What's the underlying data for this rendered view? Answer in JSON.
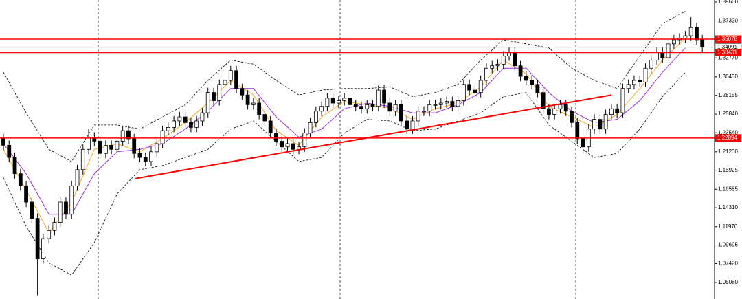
{
  "chart_data": {
    "type": "candlestick",
    "open": [
      1.228,
      1.22,
      1.205,
      1.185,
      1.17,
      1.15,
      1.13,
      1.08,
      1.105,
      1.115,
      1.125,
      1.15,
      1.135,
      1.17,
      1.19,
      1.215,
      1.23,
      1.225,
      1.21,
      1.22,
      1.215,
      1.225,
      1.238,
      1.228,
      1.21,
      1.205,
      1.2,
      1.212,
      1.222,
      1.238,
      1.242,
      1.25,
      1.255,
      1.248,
      1.242,
      1.25,
      1.26,
      1.285,
      1.275,
      1.295,
      1.3,
      1.312,
      1.29,
      1.282,
      1.27,
      1.272,
      1.258,
      1.25,
      1.235,
      1.225,
      1.218,
      1.222,
      1.215,
      1.218,
      1.235,
      1.248,
      1.262,
      1.268,
      1.278,
      1.272,
      1.275,
      1.278,
      1.27,
      1.268,
      1.265,
      1.27,
      1.268,
      1.288,
      1.272,
      1.262,
      1.27,
      1.25,
      1.24,
      1.25,
      1.262,
      1.262,
      1.27,
      1.27,
      1.272,
      1.274,
      1.268,
      1.275,
      1.295,
      1.288,
      1.285,
      1.3,
      1.315,
      1.318,
      1.32,
      1.33,
      1.335,
      1.318,
      1.305,
      1.3,
      1.295,
      1.285,
      1.265,
      1.258,
      1.265,
      1.27,
      1.262,
      1.248,
      1.228,
      1.218,
      1.24,
      1.252,
      1.24,
      1.258,
      1.265,
      1.26,
      1.29,
      1.295,
      1.3,
      1.298,
      1.315,
      1.325,
      1.335,
      1.328,
      1.345,
      1.35,
      1.352,
      1.355,
      1.365,
      1.35
    ],
    "high": [
      1.234,
      1.226,
      1.211,
      1.191,
      1.176,
      1.156,
      1.136,
      1.111,
      1.121,
      1.131,
      1.156,
      1.156,
      1.176,
      1.196,
      1.221,
      1.24,
      1.236,
      1.231,
      1.226,
      1.226,
      1.231,
      1.244,
      1.244,
      1.234,
      1.216,
      1.211,
      1.218,
      1.228,
      1.244,
      1.248,
      1.256,
      1.261,
      1.261,
      1.254,
      1.256,
      1.266,
      1.291,
      1.291,
      1.301,
      1.306,
      1.318,
      1.318,
      1.296,
      1.288,
      1.278,
      1.278,
      1.264,
      1.256,
      1.241,
      1.231,
      1.228,
      1.228,
      1.224,
      1.241,
      1.254,
      1.268,
      1.274,
      1.284,
      1.284,
      1.281,
      1.284,
      1.284,
      1.276,
      1.274,
      1.276,
      1.276,
      1.294,
      1.294,
      1.278,
      1.276,
      1.276,
      1.256,
      1.256,
      1.268,
      1.268,
      1.276,
      1.276,
      1.278,
      1.28,
      1.28,
      1.281,
      1.301,
      1.301,
      1.294,
      1.306,
      1.321,
      1.324,
      1.326,
      1.336,
      1.341,
      1.341,
      1.324,
      1.311,
      1.306,
      1.301,
      1.291,
      1.271,
      1.271,
      1.276,
      1.276,
      1.268,
      1.254,
      1.234,
      1.246,
      1.258,
      1.258,
      1.264,
      1.271,
      1.271,
      1.296,
      1.301,
      1.306,
      1.306,
      1.321,
      1.331,
      1.341,
      1.341,
      1.351,
      1.356,
      1.358,
      1.361,
      1.378,
      1.371,
      1.356
    ],
    "low": [
      1.214,
      1.199,
      1.179,
      1.164,
      1.144,
      1.124,
      1.035,
      1.074,
      1.099,
      1.109,
      1.119,
      1.129,
      1.129,
      1.164,
      1.184,
      1.209,
      1.219,
      1.204,
      1.204,
      1.209,
      1.209,
      1.219,
      1.222,
      1.204,
      1.199,
      1.194,
      1.194,
      1.206,
      1.216,
      1.232,
      1.236,
      1.244,
      1.242,
      1.236,
      1.236,
      1.244,
      1.254,
      1.269,
      1.269,
      1.289,
      1.294,
      1.284,
      1.276,
      1.264,
      1.264,
      1.252,
      1.244,
      1.229,
      1.219,
      1.212,
      1.212,
      1.209,
      1.209,
      1.212,
      1.229,
      1.242,
      1.256,
      1.262,
      1.266,
      1.266,
      1.269,
      1.264,
      1.262,
      1.259,
      1.259,
      1.262,
      1.262,
      1.266,
      1.256,
      1.256,
      1.244,
      1.234,
      1.234,
      1.244,
      1.256,
      1.256,
      1.264,
      1.264,
      1.266,
      1.262,
      1.262,
      1.269,
      1.282,
      1.279,
      1.279,
      1.294,
      1.309,
      1.312,
      1.314,
      1.324,
      1.312,
      1.299,
      1.294,
      1.289,
      1.279,
      1.259,
      1.252,
      1.252,
      1.259,
      1.256,
      1.242,
      1.222,
      1.21,
      1.212,
      1.234,
      1.234,
      1.234,
      1.252,
      1.254,
      1.254,
      1.284,
      1.289,
      1.292,
      1.292,
      1.309,
      1.319,
      1.322,
      1.322,
      1.339,
      1.344,
      1.346,
      1.349,
      1.344,
      1.335
    ],
    "close": [
      1.22,
      1.205,
      1.185,
      1.17,
      1.15,
      1.13,
      1.08,
      1.105,
      1.115,
      1.125,
      1.15,
      1.135,
      1.17,
      1.19,
      1.215,
      1.23,
      1.225,
      1.21,
      1.22,
      1.215,
      1.225,
      1.238,
      1.228,
      1.21,
      1.205,
      1.2,
      1.212,
      1.222,
      1.238,
      1.242,
      1.25,
      1.255,
      1.248,
      1.242,
      1.25,
      1.26,
      1.285,
      1.275,
      1.295,
      1.3,
      1.312,
      1.29,
      1.282,
      1.27,
      1.272,
      1.258,
      1.25,
      1.235,
      1.225,
      1.218,
      1.222,
      1.215,
      1.218,
      1.235,
      1.248,
      1.262,
      1.268,
      1.278,
      1.272,
      1.275,
      1.278,
      1.27,
      1.268,
      1.265,
      1.27,
      1.268,
      1.288,
      1.272,
      1.262,
      1.27,
      1.25,
      1.24,
      1.25,
      1.262,
      1.262,
      1.27,
      1.27,
      1.272,
      1.274,
      1.268,
      1.275,
      1.295,
      1.288,
      1.285,
      1.3,
      1.315,
      1.318,
      1.32,
      1.33,
      1.335,
      1.318,
      1.305,
      1.3,
      1.295,
      1.285,
      1.265,
      1.258,
      1.265,
      1.27,
      1.262,
      1.248,
      1.228,
      1.218,
      1.24,
      1.252,
      1.24,
      1.258,
      1.265,
      1.26,
      1.29,
      1.295,
      1.3,
      1.298,
      1.315,
      1.325,
      1.335,
      1.328,
      1.345,
      1.35,
      1.352,
      1.355,
      1.365,
      1.35,
      1.341
    ],
    "up_color": "#ffffff",
    "down_color": "#000000",
    "indicators": [
      {
        "color": "#f5a623",
        "style": "solid",
        "values": [
          1.215,
          1.165,
          1.112,
          1.15,
          1.215,
          1.222,
          1.212,
          1.228,
          1.248,
          1.272,
          1.3,
          1.282,
          1.238,
          1.22,
          1.255,
          1.274,
          1.27,
          1.266,
          1.252,
          1.265,
          1.272,
          1.292,
          1.325,
          1.308,
          1.268,
          1.255,
          1.242,
          1.258,
          1.29,
          1.325,
          1.352
        ]
      },
      {
        "color": "#9b30d9",
        "style": "solid",
        "values": [
          1.222,
          1.185,
          1.135,
          1.135,
          1.185,
          1.212,
          1.215,
          1.222,
          1.24,
          1.262,
          1.29,
          1.29,
          1.255,
          1.23,
          1.24,
          1.265,
          1.272,
          1.268,
          1.26,
          1.26,
          1.27,
          1.285,
          1.315,
          1.315,
          1.285,
          1.262,
          1.248,
          1.252,
          1.275,
          1.31,
          1.34
        ]
      },
      {
        "color": "#000000",
        "style": "dotted",
        "values": [
          1.31,
          1.26,
          1.215,
          1.2,
          1.245,
          1.245,
          1.24,
          1.255,
          1.27,
          1.3,
          1.325,
          1.32,
          1.3,
          1.282,
          1.288,
          1.29,
          1.29,
          1.292,
          1.28,
          1.285,
          1.295,
          1.325,
          1.35,
          1.345,
          1.34,
          1.315,
          1.3,
          1.29,
          1.33,
          1.37,
          1.385
        ]
      },
      {
        "color": "#000000",
        "style": "dotted",
        "values": [
          1.18,
          1.12,
          1.075,
          1.06,
          1.1,
          1.16,
          1.19,
          1.195,
          1.205,
          1.215,
          1.24,
          1.25,
          1.225,
          1.2,
          1.205,
          1.235,
          1.252,
          1.25,
          1.238,
          1.24,
          1.25,
          1.26,
          1.28,
          1.285,
          1.245,
          1.225,
          1.205,
          1.21,
          1.24,
          1.28,
          1.31
        ]
      }
    ],
    "levels": [
      {
        "value": 1.35078,
        "label": "1.35078",
        "color": "#ff0000"
      },
      {
        "value": 1.33431,
        "label": "1.33431",
        "color": "#ff0000"
      },
      {
        "value": 1.22894,
        "label": "1.22894",
        "color": "#ff0000"
      }
    ],
    "price": {
      "value": 1.34091,
      "label": "1.34091"
    },
    "trendline": {
      "color": "#ff0000",
      "values": [
        1.179,
        1.282
      ]
    },
    "ylim": [
      1.0305,
      1.3991
    ],
    "yticks": [
      {
        "value": 1.3966,
        "label": "1.39660"
      },
      {
        "value": 1.3732,
        "label": "1.37320"
      },
      {
        "value": 1.3277,
        "label": "1.32770"
      },
      {
        "value": 1.3043,
        "label": "1.30430"
      },
      {
        "value": 1.28155,
        "label": "1.28155"
      },
      {
        "value": 1.2584,
        "label": "1.25840"
      },
      {
        "value": 1.2354,
        "label": "1.23540"
      },
      {
        "value": 1.212,
        "label": "1.21200"
      },
      {
        "value": 1.18925,
        "label": "1.18925"
      },
      {
        "value": 1.16585,
        "label": "1.16585"
      },
      {
        "value": 1.1431,
        "label": "1.14310"
      },
      {
        "value": 1.1197,
        "label": "1.11970"
      },
      {
        "value": 1.09695,
        "label": "1.09695"
      },
      {
        "value": 1.0742,
        "label": "1.07420"
      },
      {
        "value": 1.0508,
        "label": "1.05080"
      }
    ]
  }
}
